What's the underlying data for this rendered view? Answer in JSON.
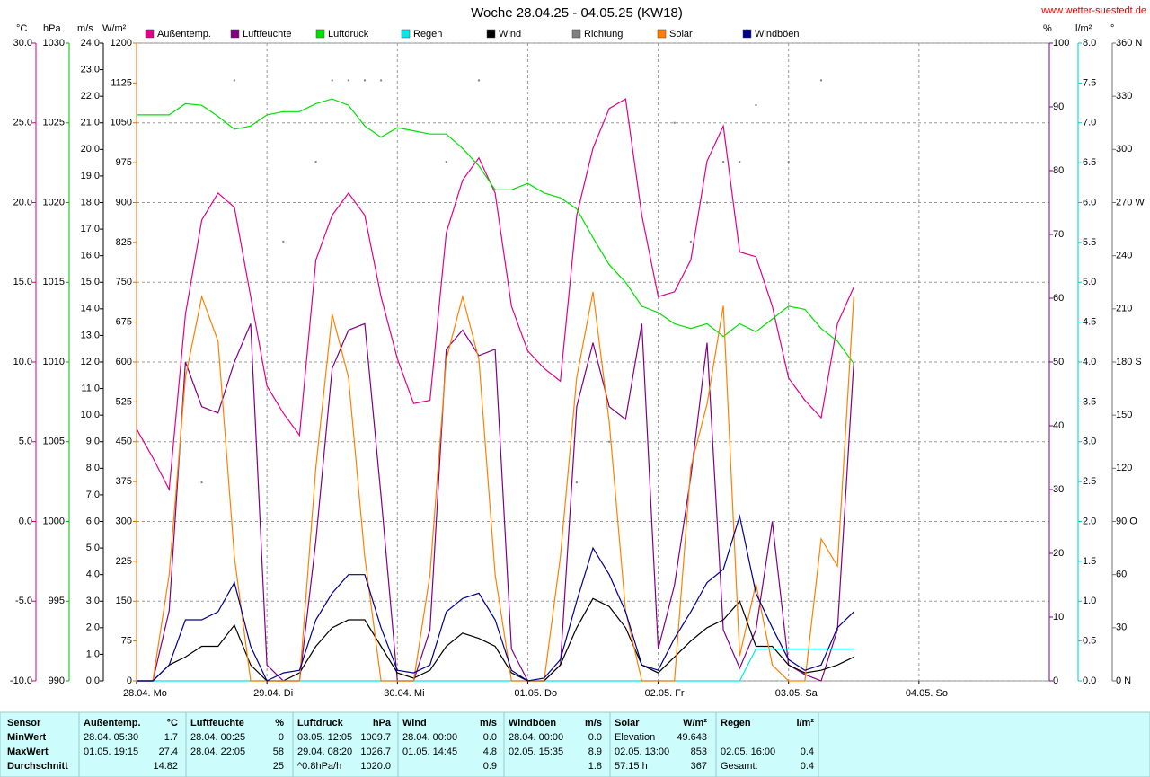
{
  "chart_data": {
    "type": "line",
    "title": "Woche 28.04.25 - 04.05.25 (KW18)",
    "source": "www.wetter-suestedt.de",
    "grid": true,
    "x": [
      0,
      3,
      6,
      9,
      12,
      15,
      18,
      21,
      24,
      27,
      30,
      33,
      36,
      39,
      42,
      45,
      48,
      51,
      54,
      57,
      60,
      63,
      66,
      69,
      72,
      75,
      78,
      81,
      84,
      87,
      90,
      93,
      96,
      99,
      102,
      105,
      108,
      111,
      114,
      117,
      120,
      123,
      126,
      129,
      132
    ],
    "xlim": [
      0,
      168
    ],
    "xticks": [
      {
        "value": 0,
        "label": "28.04. Mo"
      },
      {
        "value": 24,
        "label": "29.04. Di"
      },
      {
        "value": 48,
        "label": "30.04. Mi"
      },
      {
        "value": 72,
        "label": "01.05. Do"
      },
      {
        "value": 96,
        "label": "02.05. Fr"
      },
      {
        "value": 120,
        "label": "03.05. Sa"
      },
      {
        "value": 144,
        "label": "04.05. So"
      }
    ],
    "axes": {
      "temp": {
        "label": "°C",
        "color": "#d0007a",
        "lim": [
          -10,
          30
        ],
        "ticks": [
          {
            "value": -10,
            "label": "-10.0"
          },
          {
            "value": -5,
            "label": "-5.0"
          },
          {
            "value": 0,
            "label": "0.0"
          },
          {
            "value": 5,
            "label": "5.0"
          },
          {
            "value": 10,
            "label": "10.0"
          },
          {
            "value": 15,
            "label": "15.0"
          },
          {
            "value": 20,
            "label": "20.0"
          },
          {
            "value": 25,
            "label": "25.0"
          },
          {
            "value": 30,
            "label": "30.0"
          }
        ]
      },
      "press": {
        "label": "hPa",
        "color": "#00b800",
        "lim": [
          990,
          1030
        ],
        "ticks": [
          990,
          995,
          1000,
          1005,
          1010,
          1015,
          1020,
          1025,
          1030
        ]
      },
      "wind": {
        "label": "m/s",
        "color": "#000000",
        "lim": [
          0,
          24
        ],
        "ticks": [
          {
            "value": 0,
            "label": "0.0"
          },
          {
            "value": 1,
            "label": "1.0"
          },
          {
            "value": 2,
            "label": "2.0"
          },
          {
            "value": 3,
            "label": "3.0"
          },
          {
            "value": 4,
            "label": "4.0"
          },
          {
            "value": 5,
            "label": "5.0"
          },
          {
            "value": 6,
            "label": "6.0"
          },
          {
            "value": 7,
            "label": "7.0"
          },
          {
            "value": 8,
            "label": "8.0"
          },
          {
            "value": 9,
            "label": "9.0"
          },
          {
            "value": 10,
            "label": "10.0"
          },
          {
            "value": 11,
            "label": "11.0"
          },
          {
            "value": 12,
            "label": "12.0"
          },
          {
            "value": 13,
            "label": "13.0"
          },
          {
            "value": 14,
            "label": "14.0"
          },
          {
            "value": 15,
            "label": "15.0"
          },
          {
            "value": 16,
            "label": "16.0"
          },
          {
            "value": 17,
            "label": "17.0"
          },
          {
            "value": 18,
            "label": "18.0"
          },
          {
            "value": 19,
            "label": "19.0"
          },
          {
            "value": 20,
            "label": "20.0"
          },
          {
            "value": 21,
            "label": "21.0"
          },
          {
            "value": 22,
            "label": "22.0"
          },
          {
            "value": 23,
            "label": "23.0"
          },
          {
            "value": 24,
            "label": "24.0"
          }
        ]
      },
      "solar": {
        "label": "W/m²",
        "color": "#e07000",
        "lim": [
          0,
          1200
        ],
        "ticks": [
          0,
          75,
          150,
          225,
          300,
          375,
          450,
          525,
          600,
          675,
          750,
          825,
          900,
          975,
          1050,
          1125,
          1200
        ]
      },
      "hum": {
        "label": "%",
        "color": "#800080",
        "lim": [
          0,
          100
        ],
        "ticks": [
          0,
          10,
          20,
          30,
          40,
          50,
          60,
          70,
          80,
          90,
          100
        ]
      },
      "rain": {
        "label": "l/m²",
        "color": "#00c8c8",
        "lim": [
          0,
          8
        ],
        "ticks": [
          {
            "value": 0,
            "label": "0.0"
          },
          {
            "value": 0.5,
            "label": "0.5"
          },
          {
            "value": 1,
            "label": "1.0"
          },
          {
            "value": 1.5,
            "label": "1.5"
          },
          {
            "value": 2,
            "label": "2.0"
          },
          {
            "value": 2.5,
            "label": "2.5"
          },
          {
            "value": 3,
            "label": "3.0"
          },
          {
            "value": 3.5,
            "label": "3.5"
          },
          {
            "value": 4,
            "label": "4.0"
          },
          {
            "value": 4.5,
            "label": "4.5"
          },
          {
            "value": 5,
            "label": "5.0"
          },
          {
            "value": 5.5,
            "label": "5.5"
          },
          {
            "value": 6,
            "label": "6.0"
          },
          {
            "value": 6.5,
            "label": "6.5"
          },
          {
            "value": 7,
            "label": "7.0"
          },
          {
            "value": 7.5,
            "label": "7.5"
          },
          {
            "value": 8,
            "label": "8.0"
          }
        ]
      },
      "dir": {
        "label": "°",
        "color": "#707070",
        "lim": [
          0,
          360
        ],
        "ticks": [
          {
            "value": 0,
            "label": "0 N"
          },
          30,
          60,
          {
            "value": 90,
            "label": "90 O"
          },
          120,
          150,
          {
            "value": 180,
            "label": "180 S"
          },
          210,
          240,
          {
            "value": 270,
            "label": "270 W"
          },
          300,
          330,
          {
            "value": 360,
            "label": "360 N"
          }
        ]
      }
    },
    "series": [
      {
        "name": "Außentemp.",
        "color": "#e0008a",
        "legend_color": "#000000",
        "axis": "temp",
        "style": "line",
        "values": [
          5.8,
          4.0,
          2.0,
          13.0,
          18.9,
          20.6,
          19.7,
          14.1,
          8.5,
          6.8,
          5.4,
          16.4,
          19.2,
          20.6,
          19.2,
          14.1,
          10.2,
          7.4,
          7.6,
          18.1,
          21.4,
          22.8,
          20.6,
          13.5,
          10.7,
          9.6,
          8.8,
          19.2,
          23.4,
          25.9,
          26.5,
          19.2,
          14.1,
          14.4,
          16.4,
          22.6,
          24.8,
          16.9,
          16.6,
          13.5,
          9.0,
          7.6,
          6.5,
          12.4,
          14.7
        ]
      },
      {
        "name": "Luftfeuchte",
        "color": "#800080",
        "legend_color": "#000000",
        "axis": "hum",
        "style": "line",
        "values": [
          0,
          0,
          11,
          50,
          43,
          42,
          50,
          56,
          2.5,
          0,
          0,
          22,
          49,
          55,
          56,
          29,
          0,
          0,
          8,
          52,
          55,
          51,
          52,
          5,
          0,
          0,
          2.5,
          43,
          53,
          43,
          41,
          56,
          5,
          15,
          32,
          53,
          8,
          2,
          8,
          25,
          2.5,
          1,
          0,
          8,
          50
        ]
      },
      {
        "name": "Luftdruck",
        "color": "#00e000",
        "legend_color": "#000000",
        "axis": "press",
        "style": "line",
        "values": [
          1025.5,
          1025.5,
          1025.5,
          1026.2,
          1026.1,
          1025.4,
          1024.6,
          1024.8,
          1025.5,
          1025.7,
          1025.7,
          1026.2,
          1026.5,
          1026.1,
          1024.8,
          1024.1,
          1024.7,
          1024.5,
          1024.3,
          1024.3,
          1023.4,
          1022.3,
          1020.8,
          1020.8,
          1021.2,
          1020.6,
          1020.3,
          1019.6,
          1017.8,
          1016.1,
          1015.0,
          1013.5,
          1013.1,
          1012.4,
          1012.1,
          1012.4,
          1011.6,
          1012.4,
          1011.9,
          1012.7,
          1013.5,
          1013.3,
          1012.1,
          1011.3,
          1009.9
        ]
      },
      {
        "name": "Regen",
        "color": "#00e8e8",
        "legend_color": "#00d8d8",
        "axis": "rain",
        "style": "line",
        "values": [
          0,
          0,
          0,
          0,
          0,
          0,
          0,
          0,
          0,
          0,
          0,
          0,
          0,
          0,
          0,
          0,
          0,
          0,
          0,
          0,
          0,
          0,
          0,
          0,
          0,
          0,
          0,
          0,
          0,
          0,
          0,
          0,
          0,
          0,
          0,
          0,
          0,
          0,
          0.4,
          0.4,
          0.4,
          0.4,
          0.4,
          0.4,
          0.4
        ]
      },
      {
        "name": "Wind",
        "color": "#000000",
        "legend_color": "#000000",
        "axis": "wind",
        "style": "line",
        "values": [
          0,
          0,
          0.6,
          0.9,
          1.3,
          1.3,
          2.1,
          0.6,
          0,
          0,
          0.3,
          1.3,
          2.0,
          2.3,
          2.3,
          1.3,
          0.3,
          0.1,
          0.4,
          1.3,
          1.8,
          1.6,
          1.3,
          0.3,
          0,
          0,
          0.6,
          2.0,
          3.1,
          2.8,
          2.0,
          0.6,
          0.3,
          0.9,
          1.5,
          2.0,
          2.3,
          3.0,
          1.3,
          1.3,
          0.6,
          0.3,
          0.4,
          0.6,
          0.9
        ]
      },
      {
        "name": "Richtung",
        "color": "#808080",
        "legend_color": "#000000",
        "axis": "dir",
        "style": "dots",
        "values": [
          null,
          null,
          null,
          null,
          112,
          null,
          339,
          null,
          null,
          248,
          null,
          293,
          339,
          339,
          339,
          339,
          null,
          null,
          null,
          293,
          null,
          339,
          null,
          null,
          null,
          null,
          null,
          112,
          null,
          135,
          null,
          null,
          null,
          315,
          248,
          270,
          293,
          293,
          325,
          null,
          293,
          null,
          339,
          null,
          null
        ]
      },
      {
        "name": "Solar",
        "color": "#ff8000",
        "legend_color": "#ff8000",
        "axis": "solar",
        "style": "line",
        "values": [
          0,
          0,
          200,
          571,
          723,
          639,
          233,
          0,
          0,
          0,
          0,
          402,
          690,
          571,
          233,
          0,
          0,
          0,
          200,
          605,
          723,
          605,
          200,
          0,
          0,
          0,
          233,
          571,
          732,
          487,
          132,
          0,
          0,
          0,
          402,
          521,
          706,
          47,
          183,
          30,
          0,
          0,
          267,
          216,
          723
        ]
      },
      {
        "name": "Windböen",
        "color": "#000090",
        "legend_color": "#000000",
        "axis": "wind",
        "style": "line",
        "values": [
          0,
          0,
          0.6,
          2.3,
          2.3,
          2.6,
          3.7,
          1.3,
          0,
          0.3,
          0.4,
          2.3,
          3.3,
          4.0,
          4.0,
          2.0,
          0.4,
          0.3,
          0.6,
          2.6,
          3.1,
          3.3,
          2.3,
          0.4,
          0,
          0.1,
          0.8,
          3.0,
          5.0,
          4.0,
          2.6,
          0.6,
          0.4,
          1.6,
          2.6,
          3.7,
          4.2,
          6.2,
          3.3,
          2.0,
          0.8,
          0.4,
          0.6,
          2.0,
          2.6
        ]
      }
    ]
  },
  "table": {
    "rows": [
      [
        "Sensor",
        "Außentemp.",
        "°C",
        "Luftfeuchte",
        "%",
        "Luftdruck",
        "hPa",
        "Wind",
        "m/s",
        "Windböen",
        "m/s",
        "Solar",
        "W/m²",
        "Regen",
        "l/m²"
      ],
      [
        "MinWert",
        "28.04. 05:30",
        "1.7",
        "28.04. 00:25",
        "0",
        "03.05. 12:05",
        "1009.7",
        "28.04. 00:00",
        "0.0",
        "28.04. 00:00",
        "0.0",
        "Elevation",
        "49.643",
        null,
        null
      ],
      [
        "MaxWert",
        "01.05. 19:15",
        "27.4",
        "28.04. 22:05",
        "58",
        "29.04. 08:20",
        "1026.7",
        "01.05. 14:45",
        "4.8",
        "02.05. 15:35",
        "8.9",
        "02.05. 13:00",
        "853",
        "02.05. 16:00",
        "0.4"
      ],
      [
        "Durchschnitt",
        null,
        "14.82",
        null,
        "25",
        "^0.8hPa/h",
        "1020.0",
        null,
        "0.9",
        null,
        "1.8",
        "57:15 h",
        "367",
        "Gesamt:",
        "0.4"
      ]
    ]
  }
}
